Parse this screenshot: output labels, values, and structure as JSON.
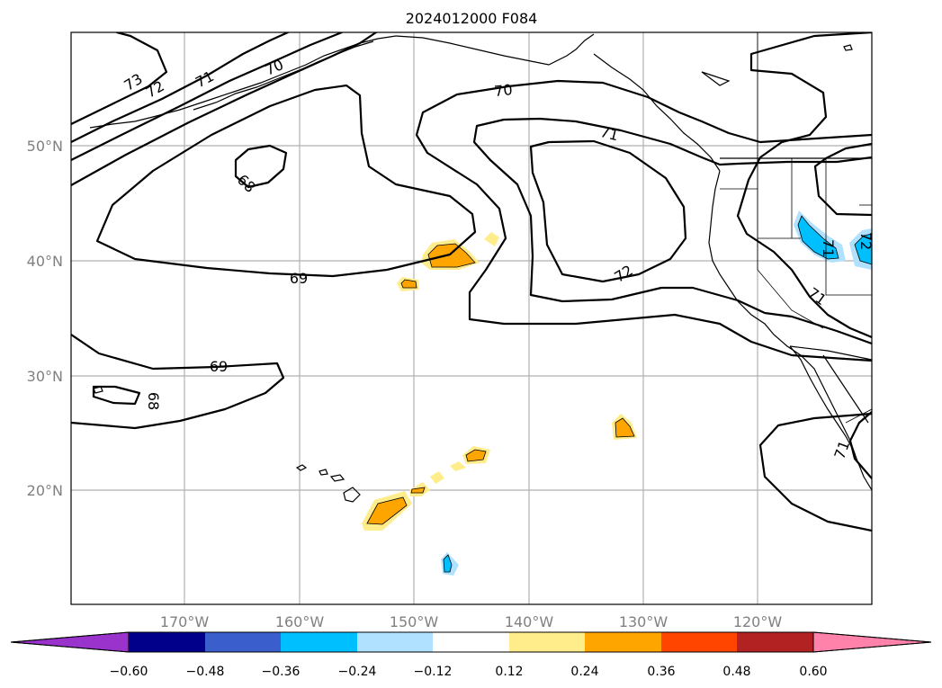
{
  "title": "2024012000 F084",
  "map": {
    "lat_labels": [
      "50°N",
      "40°N",
      "30°N",
      "20°N"
    ],
    "lon_labels": [
      "170°W",
      "160°W",
      "150°W",
      "140°W",
      "130°W",
      "120°W"
    ],
    "contour_labels": [
      "73",
      "72",
      "71",
      "70",
      "70",
      "71",
      "68",
      "69",
      "72",
      "71",
      "69",
      "68",
      "71",
      "71",
      "72"
    ]
  },
  "colorbar": {
    "ticks": [
      "−0.60",
      "−0.48",
      "−0.36",
      "−0.24",
      "−0.12",
      "0.12",
      "0.24",
      "0.36",
      "0.48",
      "0.60"
    ],
    "colors": [
      "#9933cc",
      "#00008b",
      "#3a5fcd",
      "#00bfff",
      "#b0e2ff",
      "#ffffff",
      "#ffec8b",
      "#ffa500",
      "#ff4500",
      "#b22222",
      "#ff82ab"
    ]
  },
  "anomaly_colors": {
    "light_positive": "#ffec8b",
    "positive": "#ffa500",
    "negative": "#00bfff",
    "light_negative": "#b0e2ff"
  }
}
